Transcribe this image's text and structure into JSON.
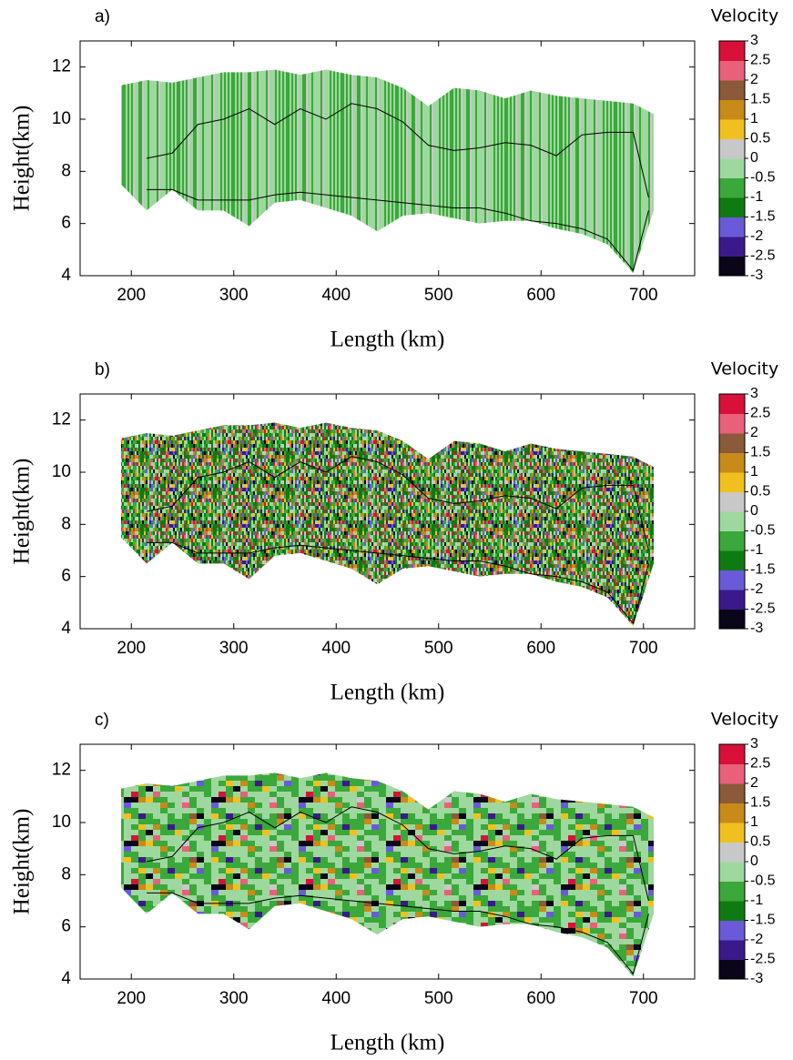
{
  "chart_data": [
    {
      "type": "heatmap",
      "panel_label": "a)",
      "xlabel": "Length (km)",
      "ylabel": "Height(km)",
      "colorbar_label": "Velocity",
      "xlim": [
        150,
        750
      ],
      "ylim": [
        4,
        13
      ],
      "xticks": [
        200,
        300,
        400,
        500,
        600,
        700
      ],
      "yticks": [
        4,
        6,
        8,
        10,
        12
      ],
      "zlim": [
        -3,
        3
      ],
      "zticks": [
        3,
        2.5,
        2,
        1.5,
        1,
        0.5,
        0,
        -0.5,
        -1,
        -1.5,
        -2,
        -2.5,
        -3
      ],
      "colorscale": [
        "#0a0518",
        "#3a1a8a",
        "#6a5ad8",
        "#0f7a12",
        "#3aa83a",
        "#9ed89e",
        "#c8c8c8",
        "#f0c020",
        "#c88a18",
        "#8a5a3a",
        "#e8607a",
        "#d8103a"
      ],
      "style": "smooth",
      "x": [
        190,
        215,
        240,
        265,
        290,
        315,
        340,
        365,
        390,
        415,
        440,
        465,
        490,
        515,
        540,
        565,
        590,
        615,
        640,
        665,
        690,
        710
      ],
      "top": [
        11.3,
        11.5,
        11.4,
        11.6,
        11.8,
        11.8,
        11.9,
        11.7,
        11.9,
        11.7,
        11.6,
        11.2,
        10.5,
        11.2,
        11.1,
        10.8,
        11.1,
        10.9,
        10.8,
        10.7,
        10.6,
        10.2
      ],
      "base": [
        7.5,
        6.5,
        7.3,
        6.5,
        6.5,
        5.9,
        6.8,
        6.9,
        6.6,
        6.3,
        5.7,
        6.3,
        6.4,
        6.2,
        6.0,
        6.1,
        6.1,
        5.8,
        5.6,
        5.2,
        4.1,
        6.5
      ],
      "contour_x": [
        215,
        240,
        265,
        290,
        315,
        340,
        365,
        390,
        415,
        440,
        465,
        490,
        515,
        540,
        565,
        590,
        615,
        640,
        665,
        690,
        705
      ],
      "contour_top": [
        8.5,
        8.7,
        9.8,
        10.0,
        10.4,
        9.8,
        10.4,
        10.0,
        10.6,
        10.4,
        9.9,
        9.0,
        8.8,
        8.9,
        9.1,
        9.0,
        8.6,
        9.4,
        9.5,
        9.5,
        7.0
      ],
      "contour_base": [
        7.3,
        7.3,
        6.9,
        6.9,
        6.9,
        7.1,
        7.2,
        7.1,
        7.0,
        6.9,
        6.8,
        6.7,
        6.6,
        6.6,
        6.4,
        6.1,
        6.0,
        5.8,
        5.4,
        4.2,
        6.5
      ]
    },
    {
      "type": "heatmap",
      "panel_label": "b)",
      "xlabel": "Length (km)",
      "ylabel": "Height(km)",
      "colorbar_label": "Velocity",
      "xlim": [
        150,
        750
      ],
      "ylim": [
        4,
        13
      ],
      "xticks": [
        200,
        300,
        400,
        500,
        600,
        700
      ],
      "yticks": [
        4,
        6,
        8,
        10,
        12
      ],
      "zlim": [
        -3,
        3
      ],
      "zticks": [
        3,
        2.5,
        2,
        1.5,
        1,
        0.5,
        0,
        -0.5,
        -1,
        -1.5,
        -2,
        -2.5,
        -3
      ],
      "colorscale": [
        "#0a0518",
        "#3a1a8a",
        "#6a5ad8",
        "#0f7a12",
        "#3aa83a",
        "#9ed89e",
        "#c8c8c8",
        "#f0c020",
        "#c88a18",
        "#8a5a3a",
        "#e8607a",
        "#d8103a"
      ],
      "style": "noisy",
      "x": [
        190,
        215,
        240,
        265,
        290,
        315,
        340,
        365,
        390,
        415,
        440,
        465,
        490,
        515,
        540,
        565,
        590,
        615,
        640,
        665,
        690,
        710
      ],
      "top": [
        11.3,
        11.5,
        11.4,
        11.6,
        11.8,
        11.8,
        11.9,
        11.7,
        11.9,
        11.7,
        11.6,
        11.2,
        10.5,
        11.2,
        11.1,
        10.8,
        11.1,
        10.9,
        10.8,
        10.7,
        10.6,
        10.2
      ],
      "base": [
        7.5,
        6.5,
        7.3,
        6.5,
        6.5,
        5.9,
        6.8,
        6.9,
        6.6,
        6.3,
        5.7,
        6.3,
        6.4,
        6.2,
        6.0,
        6.1,
        6.1,
        5.8,
        5.6,
        5.2,
        4.1,
        6.5
      ],
      "contour_x": [
        215,
        240,
        265,
        290,
        315,
        340,
        365,
        390,
        415,
        440,
        465,
        490,
        515,
        540,
        565,
        590,
        615,
        640,
        665,
        690,
        705
      ],
      "contour_top": [
        8.5,
        8.7,
        9.8,
        10.0,
        10.4,
        9.8,
        10.4,
        10.0,
        10.6,
        10.4,
        9.9,
        9.0,
        8.8,
        8.9,
        9.1,
        9.0,
        8.6,
        9.4,
        9.5,
        9.5,
        7.0
      ],
      "contour_base": [
        7.3,
        7.3,
        6.9,
        6.9,
        6.9,
        7.1,
        7.2,
        7.1,
        7.0,
        6.9,
        6.8,
        6.7,
        6.6,
        6.6,
        6.4,
        6.1,
        6.0,
        5.8,
        5.4,
        4.2,
        6.5
      ]
    },
    {
      "type": "heatmap",
      "panel_label": "c)",
      "xlabel": "Length (km)",
      "ylabel": "Height(km)",
      "colorbar_label": "Velocity",
      "xlim": [
        150,
        750
      ],
      "ylim": [
        4,
        13
      ],
      "xticks": [
        200,
        300,
        400,
        500,
        600,
        700
      ],
      "yticks": [
        4,
        6,
        8,
        10,
        12
      ],
      "zlim": [
        -3,
        3
      ],
      "zticks": [
        3,
        2.5,
        2,
        1.5,
        1,
        0.5,
        0,
        -0.5,
        -1,
        -1.5,
        -2,
        -2.5,
        -3
      ],
      "colorscale": [
        "#0a0518",
        "#3a1a8a",
        "#6a5ad8",
        "#0f7a12",
        "#3aa83a",
        "#9ed89e",
        "#c8c8c8",
        "#f0c020",
        "#c88a18",
        "#8a5a3a",
        "#e8607a",
        "#d8103a"
      ],
      "style": "blocky",
      "x": [
        190,
        215,
        240,
        265,
        290,
        315,
        340,
        365,
        390,
        415,
        440,
        465,
        490,
        515,
        540,
        565,
        590,
        615,
        640,
        665,
        690,
        710
      ],
      "top": [
        11.3,
        11.5,
        11.4,
        11.6,
        11.8,
        11.8,
        11.9,
        11.7,
        11.9,
        11.7,
        11.6,
        11.2,
        10.5,
        11.2,
        11.1,
        10.8,
        11.1,
        10.9,
        10.8,
        10.7,
        10.6,
        10.2
      ],
      "base": [
        7.5,
        6.5,
        7.3,
        6.5,
        6.5,
        5.9,
        6.8,
        6.9,
        6.6,
        6.3,
        5.7,
        6.3,
        6.4,
        6.2,
        6.0,
        6.1,
        6.1,
        5.8,
        5.6,
        5.2,
        4.1,
        6.5
      ],
      "contour_x": [
        215,
        240,
        265,
        290,
        315,
        340,
        365,
        390,
        415,
        440,
        465,
        490,
        515,
        540,
        565,
        590,
        615,
        640,
        665,
        690,
        705
      ],
      "contour_top": [
        8.5,
        8.7,
        9.8,
        10.0,
        10.4,
        9.8,
        10.4,
        10.0,
        10.6,
        10.4,
        9.9,
        9.0,
        8.8,
        8.9,
        9.1,
        9.0,
        8.6,
        9.4,
        9.5,
        9.5,
        7.0
      ],
      "contour_base": [
        7.3,
        7.3,
        6.9,
        6.9,
        6.9,
        7.1,
        7.2,
        7.1,
        7.0,
        6.9,
        6.8,
        6.7,
        6.6,
        6.6,
        6.4,
        6.1,
        6.0,
        5.8,
        5.4,
        4.2,
        6.5
      ]
    }
  ]
}
